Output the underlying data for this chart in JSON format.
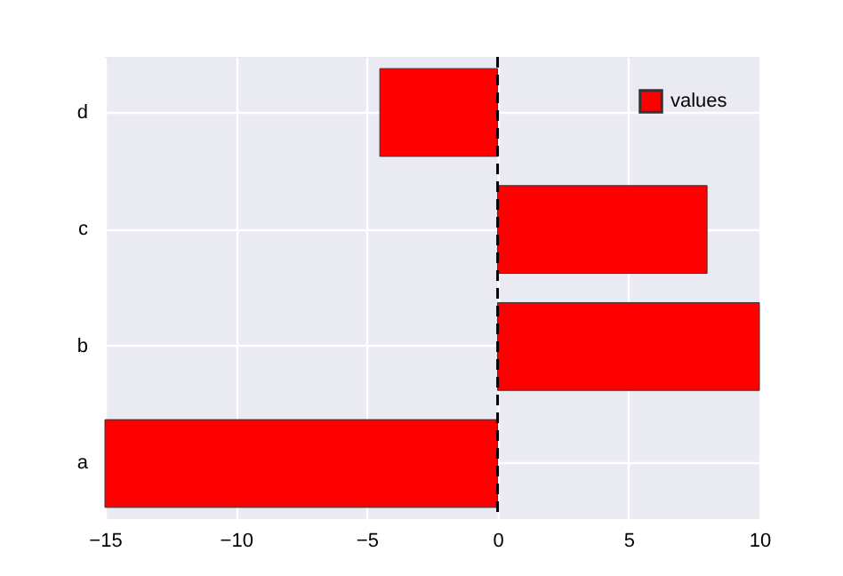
{
  "chart_data": {
    "type": "bar",
    "orientation": "horizontal",
    "categories": [
      "d",
      "c",
      "b",
      "a"
    ],
    "series": [
      {
        "name": "values",
        "color": "#ff0000",
        "values": [
          -4.5,
          8,
          10,
          -15
        ]
      }
    ],
    "xlim": [
      -15,
      10
    ],
    "xticks": [
      {
        "value": -15,
        "label": "−15"
      },
      {
        "value": -10,
        "label": "−10"
      },
      {
        "value": -5,
        "label": "−5"
      },
      0,
      5,
      10
    ],
    "ref_lines": [
      {
        "axis": "x",
        "value": 0,
        "color": "#000000",
        "line_style": "dashed"
      }
    ],
    "grid": true,
    "legend": "top right"
  }
}
